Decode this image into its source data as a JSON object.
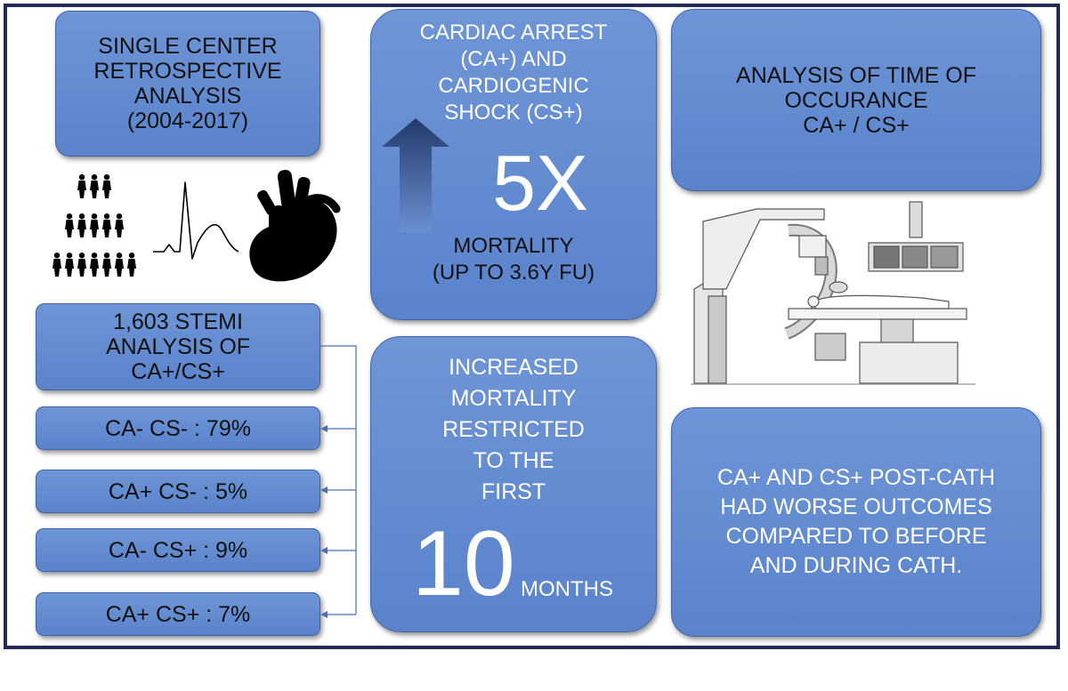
{
  "top_left": {
    "lines": [
      "SINGLE CENTER",
      "RETROSPECTIVE",
      "ANALYSIS",
      "(2004-2017)"
    ]
  },
  "center_top": {
    "lines": [
      "CARDIAC ARREST",
      "(CA+) AND",
      "CARDIOGENIC",
      "SHOCK (CS+)"
    ],
    "multiplier": "5X",
    "mortality_lines": [
      "MORTALITY",
      "(UP TO 3.6Y FU)"
    ]
  },
  "top_right": {
    "lines": [
      "ANALYSIS OF TIME OF",
      "OCCURANCE",
      "CA+ / CS+"
    ]
  },
  "stemi": {
    "lines": [
      "1,603 STEMI",
      "ANALYSIS OF",
      "CA+/CS+"
    ]
  },
  "groups": [
    {
      "label": "CA- CS- : 79%",
      "percent": 79
    },
    {
      "label": "CA+ CS- : 5%",
      "percent": 5
    },
    {
      "label": "CA- CS+ : 9%",
      "percent": 9
    },
    {
      "label": "CA+ CS+ : 7%",
      "percent": 7
    }
  ],
  "center_bottom": {
    "lines": [
      "INCREASED",
      "MORTALITY",
      "RESTRICTED",
      "TO THE",
      "FIRST"
    ],
    "number": "10",
    "unit": "MONTHS"
  },
  "bottom_right": {
    "lines": [
      "CA+ AND CS+ POST-CATH",
      "HAD WORSE OUTCOMES",
      "COMPARED TO BEFORE",
      "AND DURING CATH."
    ]
  },
  "colors": {
    "box": "#6289cf",
    "border": "#1f2a55",
    "connector": "#4a6fb5",
    "arrow_dark": "#233a6a"
  },
  "icons": [
    "people-pyramid-icon",
    "ecg-waveform-icon",
    "heart-icon",
    "cath-lab-equipment-icon",
    "up-arrow-icon"
  ]
}
